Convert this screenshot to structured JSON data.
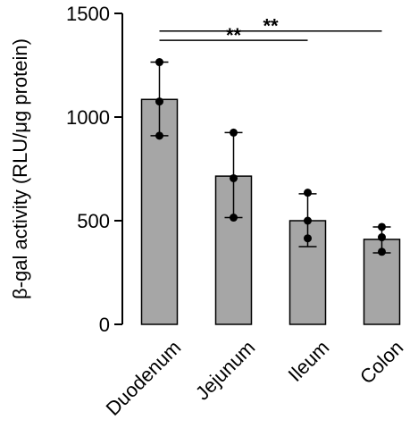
{
  "chart_data": {
    "type": "bar",
    "title": "",
    "xlabel": "",
    "ylabel": "β-gal activity (RLU/μg protein)",
    "ylim": [
      0,
      1500
    ],
    "yticks": [
      0,
      500,
      1000,
      1500
    ],
    "grid": false,
    "categories": [
      "Duodenum",
      "Jejunum",
      "Ileum",
      "Colon"
    ],
    "values": [
      1085,
      715,
      500,
      410
    ],
    "error_low": [
      910,
      515,
      375,
      345
    ],
    "error_high": [
      1265,
      925,
      630,
      470
    ],
    "points": [
      [
        1265,
        1075,
        910
      ],
      [
        925,
        705,
        515
      ],
      [
        635,
        500,
        415
      ],
      [
        470,
        420,
        350
      ]
    ],
    "significance": [
      {
        "from": "Duodenum",
        "to": "Ileum",
        "label": "**"
      },
      {
        "from": "Duodenum",
        "to": "Colon",
        "label": "**"
      }
    ],
    "colors": {
      "bar": "#a6a6a6",
      "stroke": "#000000",
      "point": "#000000"
    }
  }
}
